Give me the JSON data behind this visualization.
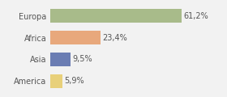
{
  "categories": [
    "Europa",
    "Africa",
    "Asia",
    "America"
  ],
  "values": [
    61.2,
    23.4,
    9.5,
    5.9
  ],
  "labels": [
    "61,2%",
    "23,4%",
    "9,5%",
    "5,9%"
  ],
  "bar_colors": [
    "#a8bb8a",
    "#e8a87c",
    "#6b7db3",
    "#e8d07a"
  ],
  "background_color": "#f2f2f2",
  "xlim": [
    0,
    80
  ],
  "bar_height": 0.62,
  "label_fontsize": 7.0,
  "tick_fontsize": 7.0
}
